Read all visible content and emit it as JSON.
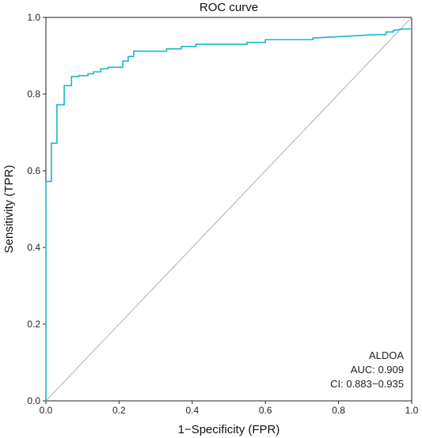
{
  "chart_data": {
    "type": "line",
    "title": "ROC curve",
    "xlabel": "1−Specificity (FPR)",
    "ylabel": "Sensitivity (TPR)",
    "xlim": [
      0,
      1
    ],
    "ylim": [
      0,
      1
    ],
    "xticks": [
      "0.0",
      "0.2",
      "0.4",
      "0.6",
      "0.8",
      "1.0"
    ],
    "yticks": [
      "0.0",
      "0.2",
      "0.4",
      "0.6",
      "0.8",
      "1.0"
    ],
    "grid": false,
    "series": [
      {
        "name": "ALDOA",
        "color": "#1ab7cc",
        "x": [
          0,
          0,
          0.015,
          0.015,
          0.03,
          0.03,
          0.05,
          0.05,
          0.07,
          0.07,
          0.09,
          0.09,
          0.115,
          0.115,
          0.13,
          0.13,
          0.15,
          0.15,
          0.17,
          0.17,
          0.21,
          0.21,
          0.225,
          0.225,
          0.24,
          0.24,
          0.33,
          0.33,
          0.37,
          0.37,
          0.41,
          0.41,
          0.55,
          0.55,
          0.6,
          0.6,
          0.73,
          0.73,
          0.9,
          0.93,
          0.93,
          0.95,
          0.95,
          0.98,
          1.0
        ],
        "y": [
          0,
          0.572,
          0.572,
          0.672,
          0.672,
          0.772,
          0.772,
          0.822,
          0.822,
          0.846,
          0.846,
          0.848,
          0.848,
          0.853,
          0.853,
          0.858,
          0.858,
          0.866,
          0.866,
          0.87,
          0.87,
          0.886,
          0.886,
          0.898,
          0.898,
          0.912,
          0.912,
          0.918,
          0.918,
          0.924,
          0.924,
          0.93,
          0.93,
          0.935,
          0.935,
          0.942,
          0.942,
          0.946,
          0.955,
          0.955,
          0.962,
          0.962,
          0.966,
          0.97,
          0.97
        ]
      }
    ],
    "reference_line": {
      "x": [
        0,
        1
      ],
      "y": [
        0,
        1
      ],
      "color": "#bbbbbb"
    },
    "annotations": [
      "ALDOA",
      "AUC: 0.909",
      "CI: 0.883−0.935"
    ]
  }
}
